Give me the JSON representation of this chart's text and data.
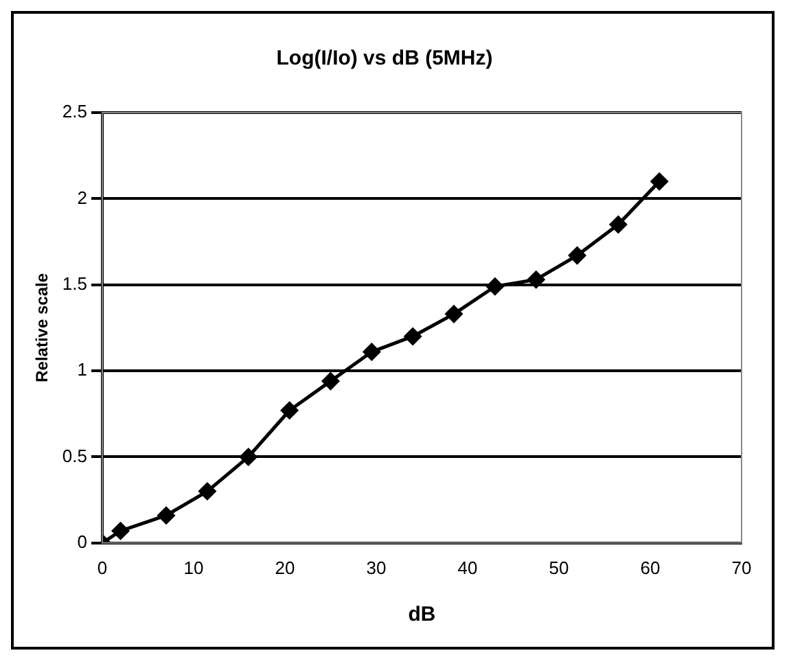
{
  "chart_data": {
    "type": "line",
    "title": "Log(I/Io) vs dB (5MHz)",
    "xlabel": "dB",
    "ylabel": "Relative scale",
    "x": [
      0,
      2,
      7,
      11.5,
      16,
      20.5,
      25,
      29.5,
      34,
      38.5,
      43,
      47.5,
      52,
      56.5,
      61
    ],
    "series": [
      {
        "color": "#000000",
        "values": [
          0,
          0.07,
          0.16,
          0.3,
          0.5,
          0.77,
          0.94,
          1.11,
          1.2,
          1.33,
          1.49,
          1.53,
          1.67,
          1.85,
          2.1
        ]
      }
    ],
    "xlim": [
      0,
      70
    ],
    "xticks": [
      0,
      10,
      20,
      30,
      40,
      50,
      60,
      70
    ],
    "ylim": [
      0,
      2.5
    ],
    "yticks": [
      0,
      0.5,
      1,
      1.5,
      2,
      2.5
    ],
    "grid": "y",
    "legend": false,
    "marker": "diamond",
    "line_style": "solid"
  }
}
